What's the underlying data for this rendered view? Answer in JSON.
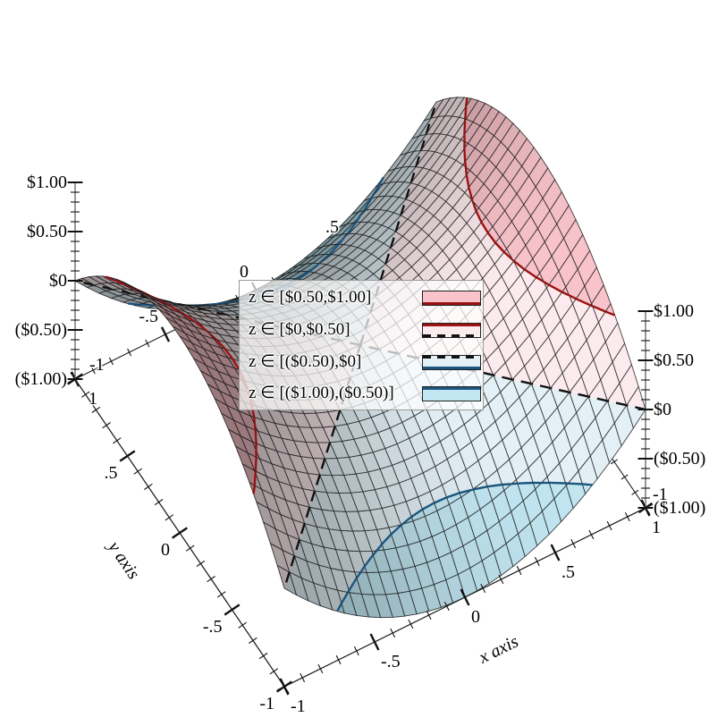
{
  "figure": {
    "kind": "3d surface plot with contour intervals",
    "background": "#ffffff"
  },
  "chart_data": {
    "type": "surface",
    "z_function": "z = x^2 - y^2",
    "x_range": [
      -1,
      1
    ],
    "y_range": [
      -1,
      1
    ],
    "z_range": [
      -1,
      1
    ],
    "grid_samples": 30,
    "projection": {
      "azimuth_deg": 30,
      "altitude_deg": 60
    },
    "x_axis": {
      "label": "x axis",
      "tick_values": [
        -1,
        -0.5,
        0,
        0.5,
        1
      ],
      "tick_labels": [
        "-1",
        "-.5",
        "0",
        ".5",
        "1"
      ],
      "minor_ticks_per_major": 4
    },
    "y_axis": {
      "label": "y axis",
      "tick_values": [
        -1,
        -0.5,
        0,
        0.5,
        1
      ],
      "tick_labels": [
        "-1",
        "-.5",
        "0",
        ".5",
        "1"
      ],
      "minor_ticks_per_major": 4
    },
    "z_axis": {
      "tick_values": [
        -1,
        -0.5,
        0,
        0.5,
        1
      ],
      "tick_labels": [
        "($1.00)",
        "($0.50)",
        "$0",
        "$0.50",
        "$1.00"
      ],
      "minor_ticks_per_major": 4
    },
    "rear_x_axis": {
      "tick_labels": [
        "-1",
        "-.5",
        "0",
        ".5"
      ],
      "tick_values": [
        -1,
        -0.5,
        0,
        0.5
      ]
    },
    "rear_y_axis": {
      "tick_labels": [
        "-1"
      ],
      "tick_values": [
        -1
      ]
    },
    "contours": [
      {
        "level": 0.5,
        "color": "#9b1212",
        "line_style": "solid"
      },
      {
        "level": 0,
        "color": "#111111",
        "line_style": "dashed"
      },
      {
        "level": -0.5,
        "color": "#1a567f",
        "line_style": "solid"
      }
    ],
    "intervals": [
      {
        "range_label": "z ∈ [$0.50,$1.00]",
        "z_min": 0.5,
        "z_max": 1,
        "fill": "#f8c3ca"
      },
      {
        "range_label": "z ∈ [$0,$0.50]",
        "z_min": 0,
        "z_max": 0.5,
        "fill": "#fcebee"
      },
      {
        "range_label": "z ∈ [($0.50),$0]",
        "z_min": -0.5,
        "z_max": 0,
        "fill": "#e3f0f6"
      },
      {
        "range_label": "z ∈ [($1.00),($0.50)]",
        "z_min": -1,
        "z_max": -0.5,
        "fill": "#c2e7f2"
      }
    ],
    "mesh_line_color": "rgba(15,15,15,0.78)",
    "lighting": true,
    "legend_position": "center"
  }
}
